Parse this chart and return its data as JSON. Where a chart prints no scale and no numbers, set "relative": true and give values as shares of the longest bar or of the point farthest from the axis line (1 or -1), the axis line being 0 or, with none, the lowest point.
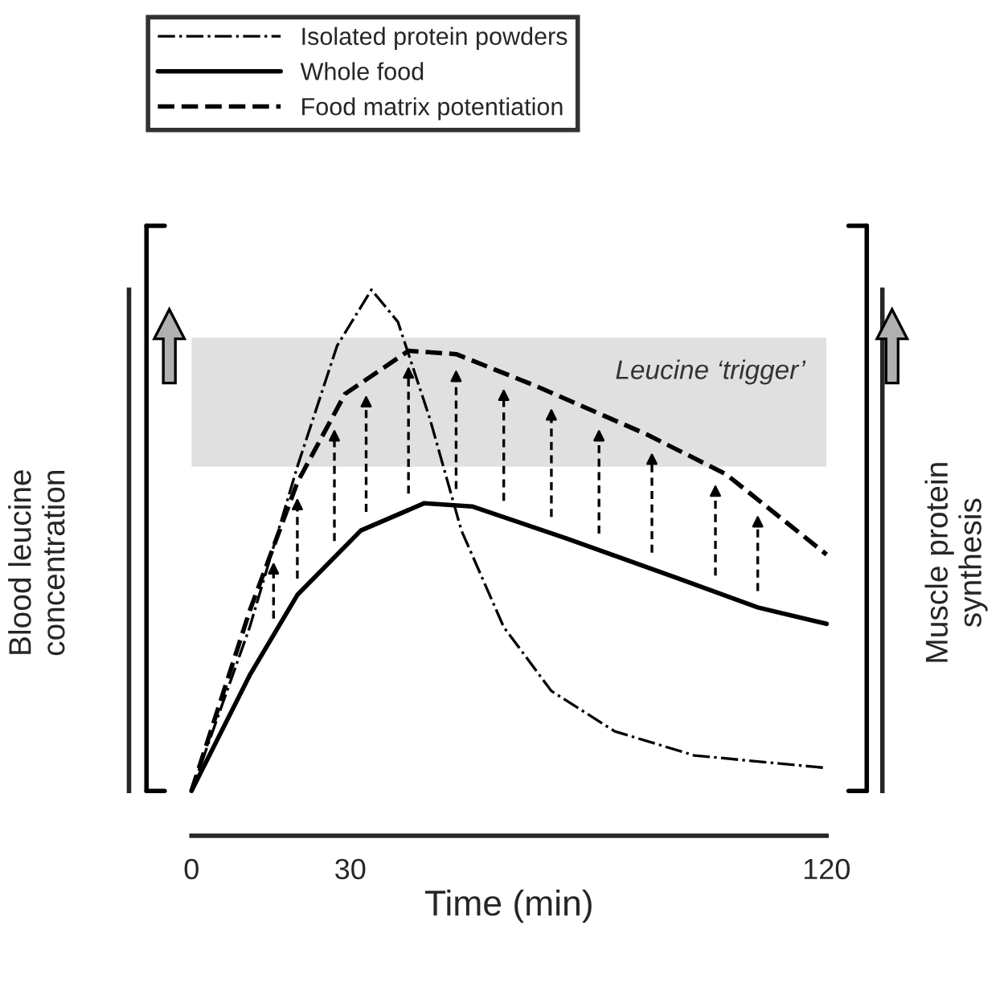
{
  "chart_data": {
    "type": "line",
    "relative": true,
    "xlabel": "Time (min)",
    "ylabel": "Blood leucine\nconcentration",
    "y2label": "Muscle protein\nsynthesis",
    "xlim": [
      0,
      120
    ],
    "xticks": [
      0,
      30,
      120
    ],
    "legend": "top",
    "grid": false,
    "series": [
      {
        "name": "Isolated protein powders",
        "color": "#000000",
        "line_style": "dashdot",
        "x": [
          0,
          11,
          20,
          27.5,
          34,
          39,
          45,
          51,
          59,
          68,
          80,
          95,
          120
        ],
        "values": [
          0.082,
          0.382,
          0.676,
          0.897,
          1.0,
          0.941,
          0.765,
          0.559,
          0.382,
          0.265,
          0.191,
          0.147,
          0.124
        ]
      },
      {
        "name": "Whole food",
        "color": "#000000",
        "line_style": "solid",
        "x": [
          0,
          11,
          20,
          32,
          44,
          53,
          71,
          92,
          107,
          120
        ],
        "values": [
          0.082,
          0.294,
          0.441,
          0.559,
          0.609,
          0.603,
          0.544,
          0.471,
          0.418,
          0.388
        ]
      },
      {
        "name": "Food matrix potentiation",
        "color": "#000000",
        "line_style": "dashed",
        "x": [
          0,
          11,
          20,
          29,
          41,
          50,
          65,
          86,
          101,
          120
        ],
        "values": [
          0.082,
          0.412,
          0.647,
          0.809,
          0.888,
          0.882,
          0.824,
          0.735,
          0.662,
          0.515
        ]
      }
    ],
    "bands": [
      {
        "axis": "y",
        "from": 0.676,
        "to": 0.912,
        "label": "Leucine ‘trigger’",
        "color": "#e0e0e0"
      }
    ]
  }
}
